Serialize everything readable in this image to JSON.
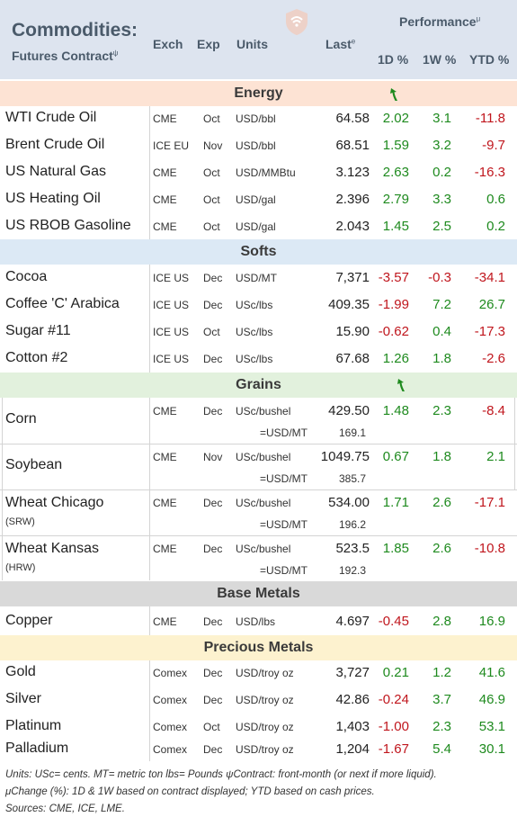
{
  "header": {
    "title": "Commodities:",
    "subtitle": "Futures Contract",
    "subtitle_mark": "ψ",
    "col_exch": "Exch",
    "col_exp": "Exp",
    "col_units": "Units",
    "col_last": "Last",
    "col_last_mark": "e",
    "performance": "Performance",
    "performance_mark": "μ",
    "col_1d": "1D %",
    "col_1w": "1W %",
    "col_ytd": "YTD %",
    "logo_icon": "wifi-shield-logo-icon"
  },
  "sections": {
    "energy": "Energy",
    "softs": "Softs",
    "grains": "Grains",
    "base": "Base Metals",
    "precious": "Precious Metals"
  },
  "energy": [
    {
      "name": "WTI Crude Oil",
      "exch": "CME",
      "exp": "Oct",
      "units": "USD/bbl",
      "last": "64.58",
      "d1": "2.02",
      "w1": "3.1",
      "ytd": "-11.8"
    },
    {
      "name": "Brent Crude Oil",
      "exch": "ICE EU",
      "exp": "Nov",
      "units": "USD/bbl",
      "last": "68.51",
      "d1": "1.59",
      "w1": "3.2",
      "ytd": "-9.7"
    },
    {
      "name": "US Natural Gas",
      "exch": "CME",
      "exp": "Oct",
      "units": "USD/MMBtu",
      "last": "3.123",
      "d1": "2.63",
      "w1": "0.2",
      "ytd": "-16.3"
    },
    {
      "name": "US Heating Oil",
      "exch": "CME",
      "exp": "Oct",
      "units": "USD/gal",
      "last": "2.396",
      "d1": "2.79",
      "w1": "3.3",
      "ytd": "0.6"
    },
    {
      "name": "US RBOB Gasoline",
      "exch": "CME",
      "exp": "Oct",
      "units": "USD/gal",
      "last": "2.043",
      "d1": "1.45",
      "w1": "2.5",
      "ytd": "0.2"
    }
  ],
  "softs": [
    {
      "name": "Cocoa",
      "exch": "ICE US",
      "exp": "Dec",
      "units": "USD/MT",
      "last": "7,371",
      "d1": "-3.57",
      "w1": "-0.3",
      "ytd": "-34.1"
    },
    {
      "name": "Coffee 'C' Arabica",
      "exch": "ICE US",
      "exp": "Dec",
      "units": "USc/lbs",
      "last": "409.35",
      "d1": "-1.99",
      "w1": "7.2",
      "ytd": "26.7"
    },
    {
      "name": "Sugar #11",
      "exch": "ICE US",
      "exp": "Oct",
      "units": "USc/lbs",
      "last": "15.90",
      "d1": "-0.62",
      "w1": "0.4",
      "ytd": "-17.3"
    },
    {
      "name": "Cotton #2",
      "exch": "ICE US",
      "exp": "Dec",
      "units": "USc/lbs",
      "last": "67.68",
      "d1": "1.26",
      "w1": "1.8",
      "ytd": "-2.6"
    }
  ],
  "grains": [
    {
      "name": "Corn",
      "sub": "",
      "exch": "CME",
      "exp": "Dec",
      "units": "USc/bushel",
      "last": "429.50",
      "units2": "=USD/MT",
      "last2": "169.1",
      "d1": "1.48",
      "w1": "2.3",
      "ytd": "-8.4"
    },
    {
      "name": "Soybean",
      "sub": "",
      "exch": "CME",
      "exp": "Nov",
      "units": "USc/bushel",
      "last": "1049.75",
      "units2": "=USD/MT",
      "last2": "385.7",
      "d1": "0.67",
      "w1": "1.8",
      "ytd": "2.1"
    },
    {
      "name": "Wheat Chicago",
      "sub": "(SRW)",
      "exch": "CME",
      "exp": "Dec",
      "units": "USc/bushel",
      "last": "534.00",
      "units2": "=USD/MT",
      "last2": "196.2",
      "d1": "1.71",
      "w1": "2.6",
      "ytd": "-17.1"
    },
    {
      "name": "Wheat Kansas",
      "sub": "(HRW)",
      "exch": "CME",
      "exp": "Dec",
      "units": "USc/bushel",
      "last": "523.5",
      "units2": "=USD/MT",
      "last2": "192.3",
      "d1": "1.85",
      "w1": "2.6",
      "ytd": "-10.8"
    }
  ],
  "base": [
    {
      "name": "Copper",
      "exch": "CME",
      "exp": "Dec",
      "units": "USD/lbs",
      "last": "4.697",
      "d1": "-0.45",
      "w1": "2.8",
      "ytd": "16.9"
    }
  ],
  "precious": [
    {
      "name": "Gold",
      "exch": "Comex",
      "exp": "Dec",
      "units": "USD/troy oz",
      "last": "3,727",
      "d1": "0.21",
      "w1": "1.2",
      "ytd": "41.6"
    },
    {
      "name": "Silver",
      "exch": "Comex",
      "exp": "Dec",
      "units": "USD/troy oz",
      "last": "42.86",
      "d1": "-0.24",
      "w1": "3.7",
      "ytd": "46.9"
    },
    {
      "name": "Platinum",
      "exch": "Comex",
      "exp": "Oct",
      "units": "USD/troy oz",
      "last": "1,403",
      "d1": "-1.00",
      "w1": "2.3",
      "ytd": "53.1"
    },
    {
      "name": "Palladium",
      "exch": "Comex",
      "exp": "Dec",
      "units": "USD/troy oz",
      "last": "1,204",
      "d1": "-1.67",
      "w1": "5.4",
      "ytd": "30.1"
    }
  ],
  "footer": {
    "line1": "Units: USc= cents.   MT= metric ton    lbs= Pounds   ψContract: front-month (or next if more liquid).",
    "line2": "μChange (%): 1D & 1W based on contract displayed; YTD based on cash prices.",
    "line3": "Sources: CME, ICE, LME."
  },
  "colors": {
    "positive": "#1e8a1e",
    "negative": "#c0161d",
    "arrow_icon": "green-up-arrow-icon"
  }
}
